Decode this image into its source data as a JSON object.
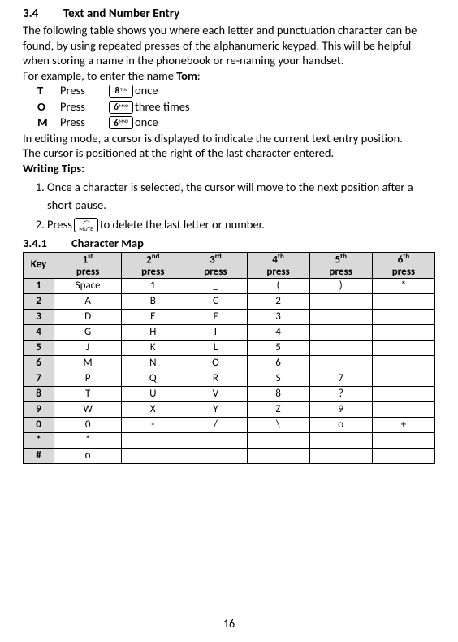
{
  "section": {
    "num": "3.4",
    "title": "Text and Number Entry"
  },
  "intro": "The following table shows you where each letter and punctuation character can be found, by using repeated presses of the alphanumeric keypad. This will be helpful when storing a name in the phonebook or re-naming your handset.",
  "example_lead_a": "For example, to enter the name ",
  "example_lead_b": "Tom",
  "example_lead_c": ":",
  "examples": [
    {
      "letter": "T",
      "press": "Press",
      "key_big": "8",
      "key_sub": "TUV",
      "after": " once"
    },
    {
      "letter": "O",
      "press": "Press",
      "key_big": "6",
      "key_sub": "MNO",
      "after": " three times"
    },
    {
      "letter": "M",
      "press": "Press",
      "key_big": "6",
      "key_sub": "MNO",
      "after": " once"
    }
  ],
  "editing1": "In editing mode, a cursor is displayed to indicate the current text entry position.",
  "editing2": "The cursor is positioned at the right of the last character entered.",
  "writing_tips_label": "Writing Tips:",
  "tip1": "Once a character is selected, the cursor will move to the next position after a short pause.",
  "tip2_a": "Press ",
  "tip2_b": " to delete the last letter or number.",
  "mute_label": "MUTE",
  "subsection": {
    "num": "3.4.1",
    "title": "Character Map"
  },
  "table": {
    "headers": [
      "Key",
      "1st press",
      "2nd press",
      "3rd press",
      "4th press",
      "5th press",
      "6th press"
    ],
    "header_ords": [
      "",
      "st",
      "nd",
      "rd",
      "th",
      "th",
      "th"
    ],
    "header_nums": [
      "Key",
      "1",
      "2",
      "3",
      "4",
      "5",
      "6"
    ],
    "rows": [
      {
        "key": "1",
        "cells": [
          "Space",
          "1",
          "_",
          "(",
          ")",
          "*"
        ]
      },
      {
        "key": "2",
        "cells": [
          "A",
          "B",
          "C",
          "2",
          "",
          ""
        ]
      },
      {
        "key": "3",
        "cells": [
          "D",
          "E",
          "F",
          "3",
          "",
          ""
        ]
      },
      {
        "key": "4",
        "cells": [
          "G",
          "H",
          "I",
          "4",
          "",
          ""
        ]
      },
      {
        "key": "5",
        "cells": [
          "J",
          "K",
          "L",
          "5",
          "",
          ""
        ]
      },
      {
        "key": "6",
        "cells": [
          "M",
          "N",
          "O",
          "6",
          "",
          ""
        ]
      },
      {
        "key": "7",
        "cells": [
          "P",
          "Q",
          "R",
          "S",
          "7",
          ""
        ]
      },
      {
        "key": "8",
        "cells": [
          "T",
          "U",
          "V",
          "8",
          "?",
          ""
        ]
      },
      {
        "key": "9",
        "cells": [
          "W",
          "X",
          "Y",
          "Z",
          "9",
          ""
        ]
      },
      {
        "key": "0",
        "cells": [
          "0",
          "-",
          "/",
          "\\",
          "o",
          "+"
        ]
      },
      {
        "key": "*",
        "cells": [
          "*",
          "",
          "",
          "",
          "",
          ""
        ]
      },
      {
        "key": "#",
        "cells": [
          "o",
          "",
          "",
          "",
          "",
          ""
        ]
      }
    ]
  },
  "page_num": "16"
}
